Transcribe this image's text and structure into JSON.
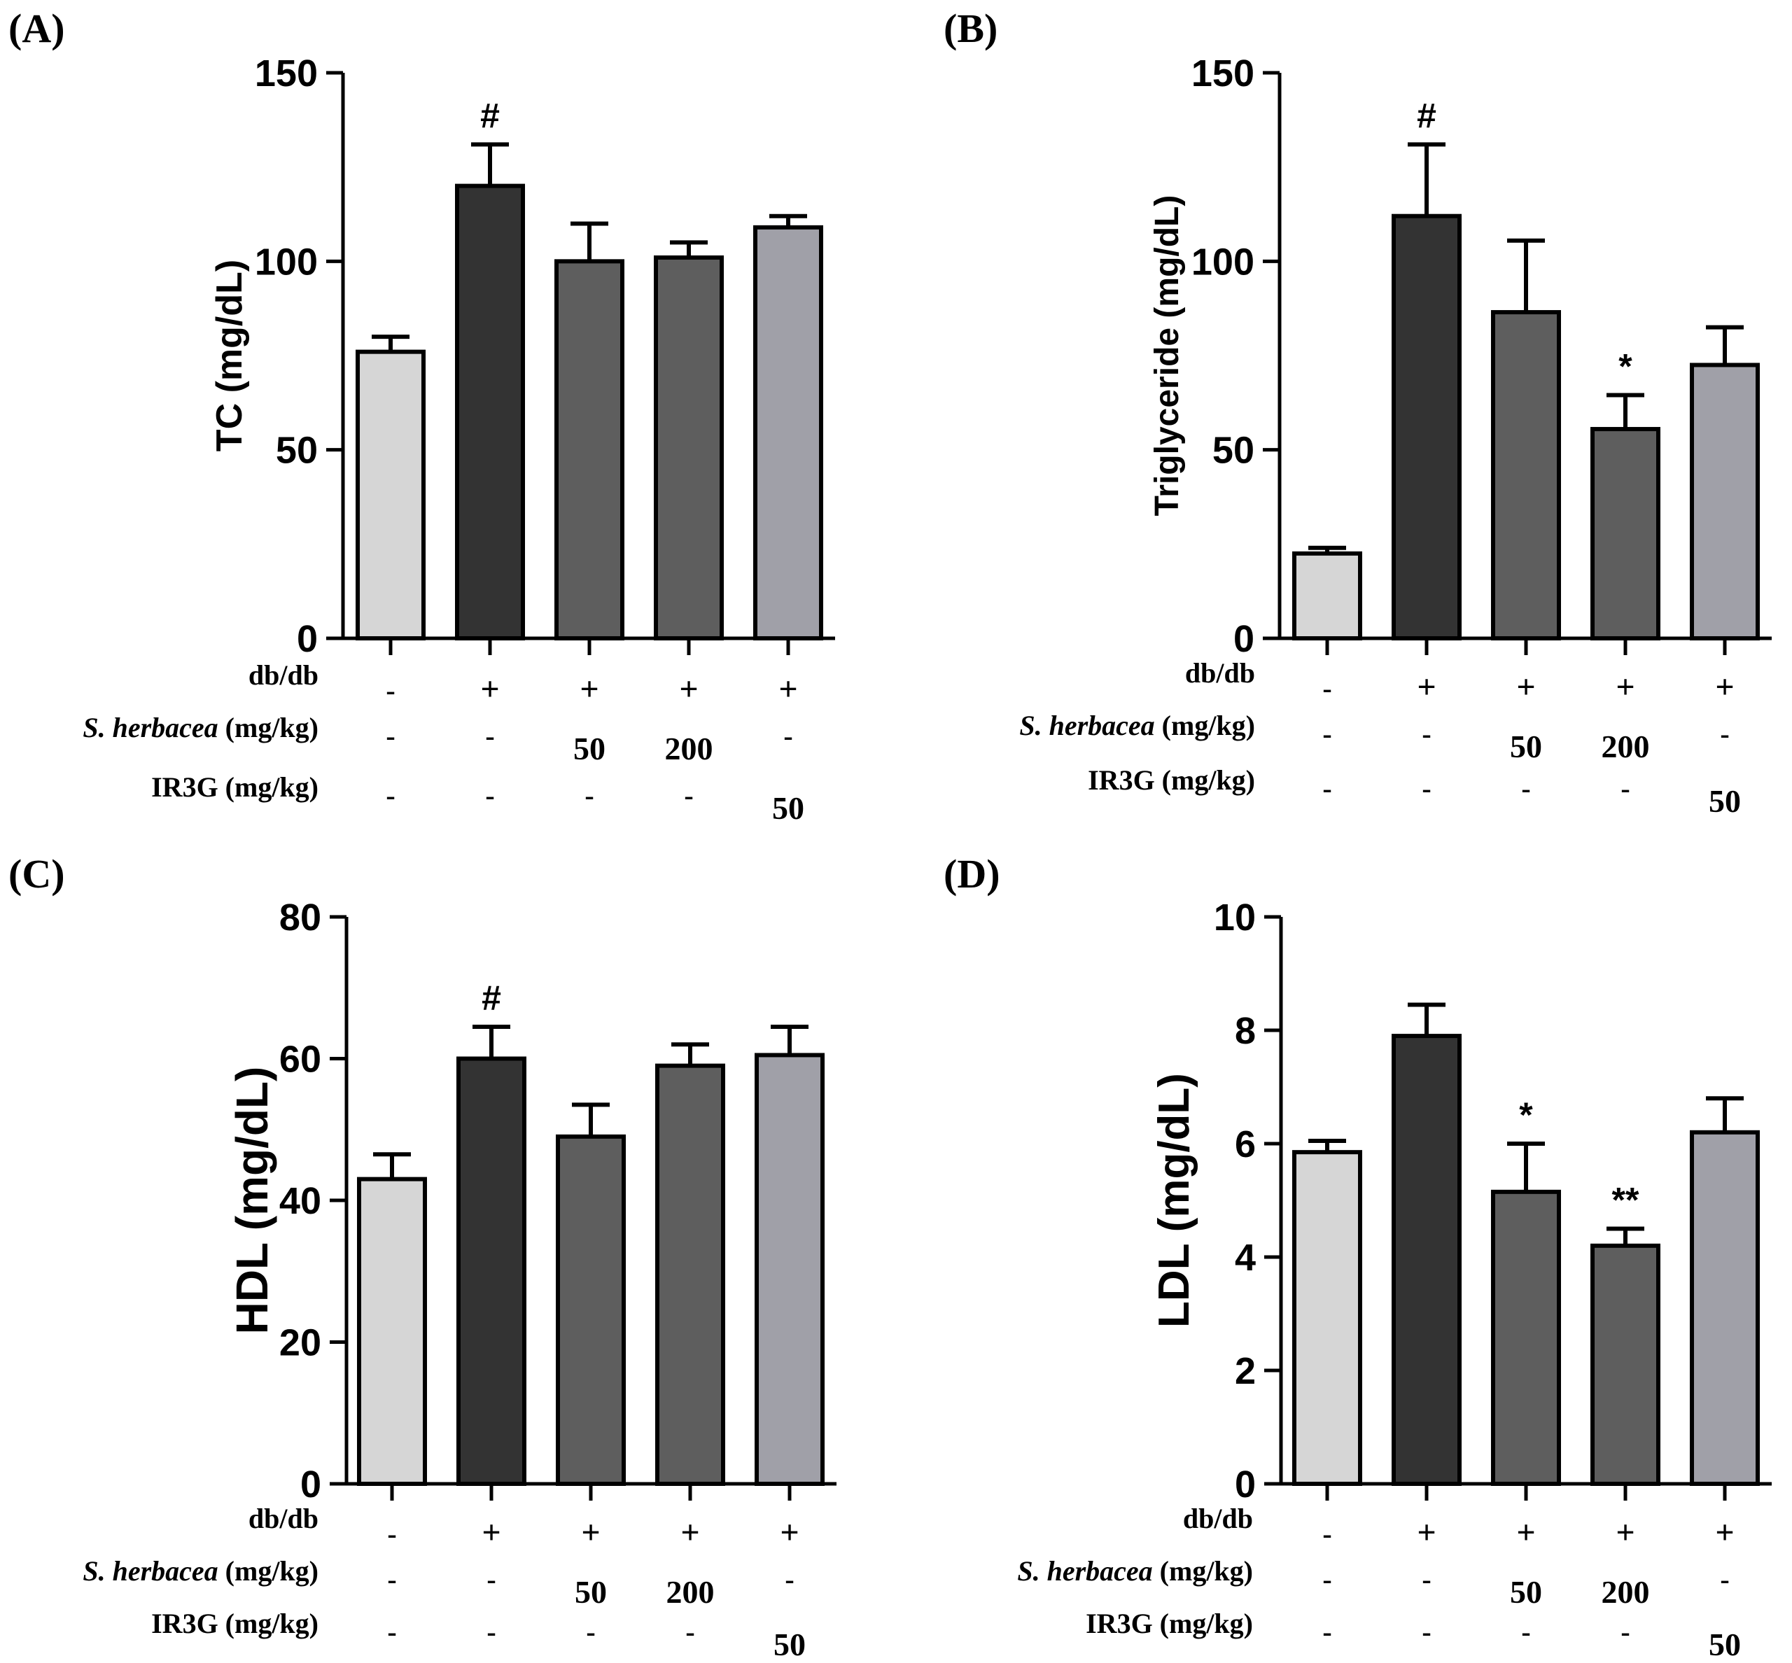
{
  "figure": {
    "bar_colors": [
      "#d6d6d6",
      "#333333",
      "#5e5e5e",
      "#5e5e5e",
      "#a0a0a8"
    ],
    "axis_color": "#000000"
  },
  "chart_data": [
    {
      "panel_label": "(A)",
      "type": "bar",
      "ylabel": "TC (mg/dL)",
      "ylim": [
        0,
        150
      ],
      "yticks": [
        "0",
        "50",
        "100",
        "150"
      ],
      "ytick_values": [
        0,
        50,
        100,
        150
      ],
      "values": [
        76,
        120,
        100,
        101,
        109
      ],
      "errors": [
        4,
        11,
        10,
        4,
        3
      ],
      "significance": [
        "",
        "#",
        "",
        "",
        ""
      ],
      "condition_rows": [
        {
          "prefix": "",
          "italic": "",
          "suffix": "db/db",
          "cells": [
            "-",
            "+",
            "+",
            "+",
            "+"
          ]
        },
        {
          "prefix": "",
          "italic": "S. herbacea",
          "suffix": " (mg/kg)",
          "cells": [
            "-",
            "-",
            "50",
            "200",
            "-"
          ]
        },
        {
          "prefix": "",
          "italic": "",
          "suffix": "IR3G (mg/kg)",
          "cells": [
            "-",
            "-",
            "-",
            "-",
            "50"
          ]
        }
      ]
    },
    {
      "panel_label": "(B)",
      "type": "bar",
      "ylabel": "Triglyceride (mg/dL)",
      "ylim": [
        0,
        150
      ],
      "yticks": [
        "0",
        "50",
        "100",
        "150"
      ],
      "ytick_values": [
        0,
        50,
        100,
        150
      ],
      "values": [
        22.5,
        112,
        86.5,
        55.5,
        72.5
      ],
      "errors": [
        1.5,
        19,
        19,
        9,
        10
      ],
      "significance": [
        "",
        "#",
        "",
        "*",
        ""
      ],
      "condition_rows": [
        {
          "prefix": "",
          "italic": "",
          "suffix": "db/db",
          "cells": [
            "-",
            "+",
            "+",
            "+",
            "+"
          ]
        },
        {
          "prefix": "",
          "italic": "S. herbacea",
          "suffix": " (mg/kg)",
          "cells": [
            "-",
            "-",
            "50",
            "200",
            "-"
          ]
        },
        {
          "prefix": "",
          "italic": "",
          "suffix": "IR3G (mg/kg)",
          "cells": [
            "-",
            "-",
            "-",
            "-",
            "50"
          ]
        }
      ]
    },
    {
      "panel_label": "(C)",
      "type": "bar",
      "ylabel": "HDL (mg/dL)",
      "ylim": [
        0,
        80
      ],
      "yticks": [
        "0",
        "20",
        "40",
        "60",
        "80"
      ],
      "ytick_values": [
        0,
        20,
        40,
        60,
        80
      ],
      "values": [
        43,
        60,
        49,
        59,
        60.5
      ],
      "errors": [
        3.5,
        4.5,
        4.5,
        3,
        4
      ],
      "significance": [
        "",
        "#",
        "",
        "",
        ""
      ],
      "condition_rows": [
        {
          "prefix": "",
          "italic": "",
          "suffix": "db/db",
          "cells": [
            "-",
            "+",
            "+",
            "+",
            "+"
          ]
        },
        {
          "prefix": "",
          "italic": "S. herbacea",
          "suffix": " (mg/kg)",
          "cells": [
            "-",
            "-",
            "50",
            "200",
            "-"
          ]
        },
        {
          "prefix": "",
          "italic": "",
          "suffix": "IR3G (mg/kg)",
          "cells": [
            "-",
            "-",
            "-",
            "-",
            "50"
          ]
        }
      ]
    },
    {
      "panel_label": "(D)",
      "type": "bar",
      "ylabel": "LDL (mg/dL)",
      "ylim": [
        0,
        10
      ],
      "yticks": [
        "0",
        "2",
        "4",
        "6",
        "8",
        "10"
      ],
      "ytick_values": [
        0,
        2,
        4,
        6,
        8,
        10
      ],
      "values": [
        5.85,
        7.9,
        5.15,
        4.2,
        6.2
      ],
      "errors": [
        0.2,
        0.55,
        0.85,
        0.3,
        0.6
      ],
      "significance": [
        "",
        "",
        "*",
        "**",
        ""
      ],
      "condition_rows": [
        {
          "prefix": "",
          "italic": "",
          "suffix": "db/db",
          "cells": [
            "-",
            "+",
            "+",
            "+",
            "+"
          ]
        },
        {
          "prefix": "",
          "italic": "S. herbacea",
          "suffix": " (mg/kg)",
          "cells": [
            "-",
            "-",
            "50",
            "200",
            "-"
          ]
        },
        {
          "prefix": "",
          "italic": "",
          "suffix": "IR3G (mg/kg)",
          "cells": [
            "-",
            "-",
            "-",
            "-",
            "50"
          ]
        }
      ]
    }
  ]
}
